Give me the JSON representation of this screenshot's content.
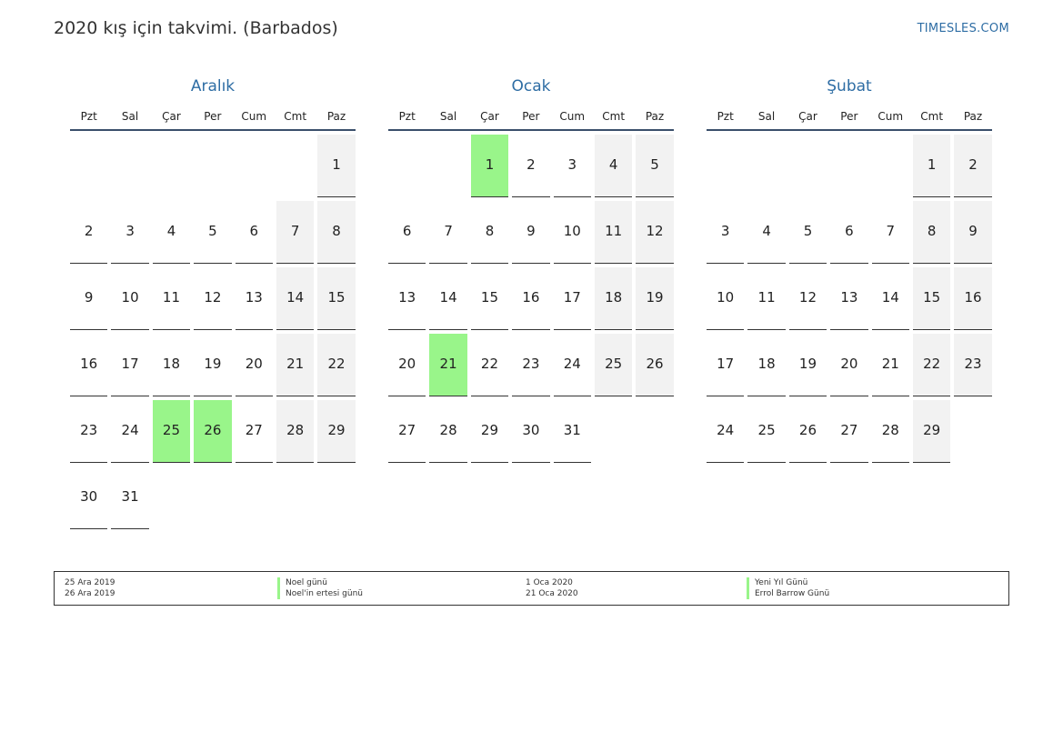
{
  "header": {
    "title": "2020 kış için takvimi. (Barbados)",
    "site": "TIMESLES.COM"
  },
  "colors": {
    "accent": "#2e6da4",
    "holiday": "#99f58a",
    "weekend": "#f2f2f2"
  },
  "weekdays": [
    "Pzt",
    "Sal",
    "Çar",
    "Per",
    "Cum",
    "Cmt",
    "Paz"
  ],
  "months": [
    {
      "name": "Aralık",
      "start_offset": 6,
      "days": [
        "1",
        "2",
        "3",
        "4",
        "5",
        "6",
        "7",
        "8",
        "9",
        "10",
        "11",
        "12",
        "13",
        "14",
        "15",
        "16",
        "17",
        "18",
        "19",
        "20",
        "21",
        "22",
        "23",
        "24",
        "25",
        "26",
        "27",
        "28",
        "29",
        "30",
        "31"
      ],
      "holidays": [
        25,
        26
      ]
    },
    {
      "name": "Ocak",
      "start_offset": 2,
      "days": [
        "1",
        "2",
        "3",
        "4",
        "5",
        "6",
        "7",
        "8",
        "9",
        "10",
        "11",
        "12",
        "13",
        "14",
        "15",
        "16",
        "17",
        "18",
        "19",
        "20",
        "21",
        "22",
        "23",
        "24",
        "25",
        "26",
        "27",
        "28",
        "29",
        "30",
        "31"
      ],
      "holidays": [
        1,
        21
      ]
    },
    {
      "name": "Şubat",
      "start_offset": 5,
      "days": [
        "1",
        "2",
        "3",
        "4",
        "5",
        "6",
        "7",
        "8",
        "9",
        "10",
        "11",
        "12",
        "13",
        "14",
        "15",
        "16",
        "17",
        "18",
        "19",
        "20",
        "21",
        "22",
        "23",
        "24",
        "25",
        "26",
        "27",
        "28",
        "29"
      ],
      "holidays": []
    }
  ],
  "holiday_list": [
    {
      "date": "25 Ara 2019",
      "name": "Noel günü"
    },
    {
      "date": "26 Ara 2019",
      "name": "Noel'in ertesi günü"
    },
    {
      "date": "1 Oca 2020",
      "name": "Yeni Yıl Günü"
    },
    {
      "date": "21 Oca 2020",
      "name": "Errol Barrow Günü"
    }
  ]
}
